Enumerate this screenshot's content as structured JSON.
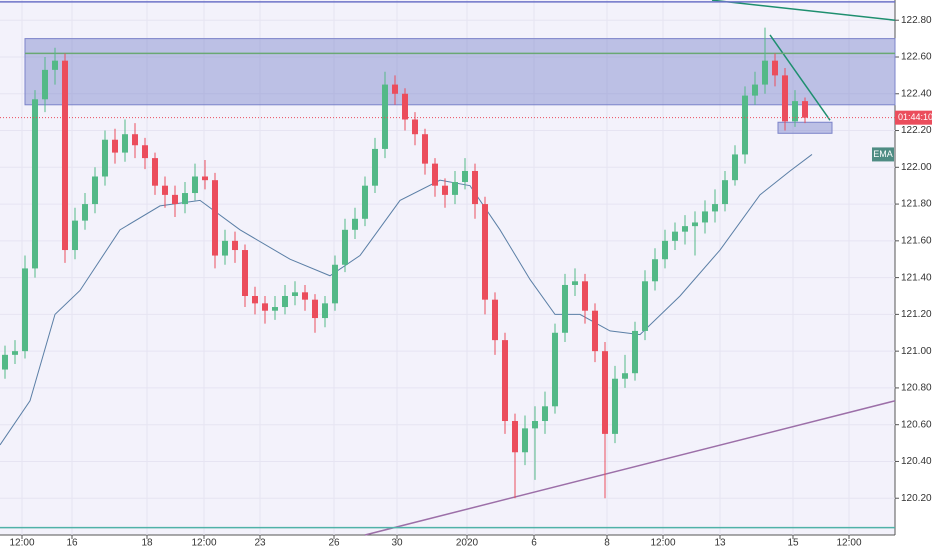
{
  "chart_data": {
    "type": "candlestick",
    "countdown": "01:44:10",
    "xlim": [
      -0.5,
      89
    ],
    "ylim": [
      120.0,
      122.91
    ],
    "grid": true,
    "up_color": "#53b987",
    "down_color": "#eb4d5c",
    "xticks": [
      {
        "value": 1.7,
        "label": "12:00"
      },
      {
        "value": 6.7,
        "label": "16"
      },
      {
        "value": 14.2,
        "label": "18"
      },
      {
        "value": 19.9,
        "label": "12:00"
      },
      {
        "value": 25.5,
        "label": "23"
      },
      {
        "value": 32.9,
        "label": "26"
      },
      {
        "value": 39.2,
        "label": "30"
      },
      {
        "value": 46.2,
        "label": "2020"
      },
      {
        "value": 52.9,
        "label": "6"
      },
      {
        "value": 60.2,
        "label": "8"
      },
      {
        "value": 65.8,
        "label": "12:00"
      },
      {
        "value": 71.5,
        "label": "13"
      },
      {
        "value": 78.8,
        "label": "15"
      },
      {
        "value": 84.4,
        "label": "12:00"
      }
    ],
    "yticks": [
      {
        "value": 120.2,
        "label": "120.200"
      },
      {
        "value": 120.4,
        "label": "120.400"
      },
      {
        "value": 120.6,
        "label": "120.600"
      },
      {
        "value": 120.8,
        "label": "120.800"
      },
      {
        "value": 121.0,
        "label": "121.000"
      },
      {
        "value": 121.2,
        "label": "121.200"
      },
      {
        "value": 121.4,
        "label": "121.400"
      },
      {
        "value": 121.6,
        "label": "121.600"
      },
      {
        "value": 121.8,
        "label": "121.800"
      },
      {
        "value": 122.0,
        "label": "122.000"
      },
      {
        "value": 122.2,
        "label": "122.200"
      },
      {
        "value": 122.4,
        "label": "122.400"
      },
      {
        "value": 122.6,
        "label": "122.600"
      },
      {
        "value": 122.8,
        "label": "122.800"
      }
    ],
    "open": [
      120.9,
      120.98,
      121.0,
      121.45,
      122.37,
      122.53,
      122.58,
      121.55,
      121.71,
      121.8,
      121.95,
      122.15,
      122.08,
      122.18,
      122.12,
      122.05,
      121.9,
      121.85,
      121.8,
      121.86,
      121.95,
      121.93,
      121.52,
      121.6,
      121.55,
      121.3,
      121.26,
      121.22,
      121.24,
      121.3,
      121.32,
      121.28,
      121.18,
      121.26,
      121.47,
      121.66,
      121.72,
      121.9,
      122.1,
      122.45,
      122.4,
      122.26,
      122.18,
      122.02,
      121.9,
      121.85,
      121.92,
      121.98,
      121.8,
      121.28,
      121.06,
      120.62,
      120.45,
      120.58,
      120.62,
      120.7,
      121.1,
      121.36,
      121.38,
      121.22,
      121.0,
      120.55,
      120.85,
      120.88,
      121.11,
      121.38,
      121.5,
      121.6,
      121.65,
      121.68,
      121.7,
      121.76,
      121.8,
      121.93,
      122.07,
      122.39,
      122.45,
      122.58,
      122.5,
      122.25,
      122.36
    ],
    "high": [
      121.03,
      121.06,
      121.52,
      122.42,
      122.6,
      122.65,
      122.62,
      121.78,
      121.86,
      122.0,
      122.2,
      122.21,
      122.26,
      122.24,
      122.16,
      122.08,
      121.95,
      121.9,
      121.92,
      122.02,
      122.04,
      121.97,
      121.66,
      121.65,
      121.58,
      121.35,
      121.3,
      121.3,
      121.36,
      121.38,
      121.36,
      121.31,
      121.3,
      121.52,
      121.72,
      121.78,
      121.95,
      122.16,
      122.52,
      122.5,
      122.43,
      122.3,
      122.21,
      122.05,
      121.94,
      121.98,
      122.05,
      122.02,
      121.84,
      121.32,
      121.1,
      120.66,
      120.65,
      120.7,
      120.78,
      121.15,
      121.42,
      121.45,
      121.42,
      121.26,
      121.05,
      120.92,
      120.98,
      121.16,
      121.44,
      121.56,
      121.66,
      121.7,
      121.74,
      121.76,
      121.82,
      121.88,
      121.98,
      122.12,
      122.44,
      122.52,
      122.76,
      122.62,
      122.54,
      122.42,
      122.38
    ],
    "low": [
      120.85,
      120.93,
      120.96,
      121.4,
      122.3,
      122.45,
      121.48,
      121.5,
      121.66,
      121.75,
      121.9,
      122.02,
      122.03,
      122.05,
      121.99,
      121.85,
      121.78,
      121.73,
      121.75,
      121.82,
      121.88,
      121.45,
      121.47,
      121.48,
      121.24,
      121.2,
      121.15,
      121.17,
      121.2,
      121.25,
      121.22,
      121.1,
      121.13,
      121.22,
      121.43,
      121.61,
      121.68,
      121.86,
      122.05,
      122.34,
      122.2,
      122.12,
      121.96,
      121.84,
      121.78,
      121.8,
      121.88,
      121.72,
      121.2,
      120.98,
      120.55,
      120.2,
      120.38,
      120.3,
      120.55,
      120.66,
      121.05,
      121.3,
      121.15,
      120.94,
      120.2,
      120.5,
      120.8,
      120.84,
      121.06,
      121.33,
      121.45,
      121.55,
      121.58,
      121.52,
      121.64,
      121.7,
      121.76,
      121.9,
      122.02,
      122.34,
      122.4,
      122.44,
      122.2,
      122.22,
      122.24
    ],
    "close": [
      120.98,
      121.0,
      121.45,
      122.37,
      122.53,
      122.58,
      121.55,
      121.71,
      121.8,
      121.95,
      122.15,
      122.08,
      122.18,
      122.12,
      122.05,
      121.9,
      121.85,
      121.8,
      121.86,
      121.95,
      121.93,
      121.52,
      121.6,
      121.55,
      121.3,
      121.26,
      121.22,
      121.24,
      121.3,
      121.32,
      121.28,
      121.18,
      121.26,
      121.47,
      121.66,
      121.72,
      121.9,
      122.1,
      122.45,
      122.4,
      122.26,
      122.18,
      122.02,
      121.9,
      121.85,
      121.92,
      121.98,
      121.8,
      121.28,
      121.06,
      120.62,
      120.45,
      120.58,
      120.62,
      120.7,
      121.1,
      121.36,
      121.38,
      121.22,
      121.0,
      120.55,
      120.85,
      120.88,
      121.11,
      121.38,
      121.5,
      121.6,
      121.65,
      121.68,
      121.7,
      121.76,
      121.8,
      121.93,
      122.07,
      122.39,
      122.45,
      122.58,
      122.5,
      122.25,
      122.36,
      122.27
    ],
    "ema": {
      "name": "EMA",
      "color": "#5b7fa6",
      "x": [
        -0.5,
        2.5,
        5,
        7.5,
        11.5,
        15.5,
        19.5,
        23.5,
        28.5,
        32.5,
        35.5,
        39.5,
        43.5,
        46.5,
        49.5,
        52.5,
        55,
        57.5,
        60.5,
        63.5,
        67.5,
        71.5,
        75.5,
        78.5,
        80.7
      ],
      "values": [
        120.49,
        120.73,
        121.2,
        121.33,
        121.66,
        121.79,
        121.82,
        121.66,
        121.5,
        121.41,
        121.52,
        121.82,
        121.93,
        121.9,
        121.66,
        121.39,
        121.2,
        121.2,
        121.11,
        121.09,
        121.3,
        121.55,
        121.85,
        121.98,
        122.07
      ]
    },
    "zones": [
      {
        "x": [
          2.0,
          89
        ],
        "y": [
          122.34,
          122.7
        ],
        "color": "#7b83c9"
      },
      {
        "x": [
          77.3,
          82.7
        ],
        "y": [
          122.185,
          122.245
        ],
        "color": "#7b83c9"
      }
    ],
    "lines": [
      {
        "x": [
          70.7,
          89
        ],
        "y": [
          122.909,
          122.8
        ],
        "color": "#1e8f6f"
      },
      {
        "x": [
          76.5,
          82.5
        ],
        "y": [
          122.72,
          122.256
        ],
        "color": "#1e8f6f"
      },
      {
        "x": [
          36,
          89
        ],
        "y": [
          120.0,
          120.73
        ],
        "color": "#9c6fa8"
      },
      {
        "x": [
          2,
          89
        ],
        "y": [
          122.62,
          122.62
        ],
        "color": "#6aa874"
      },
      {
        "x": [
          -0.5,
          89
        ],
        "y": [
          120.04,
          120.04
        ],
        "color": "#4fb2a8"
      },
      {
        "x": [
          -0.5,
          89
        ],
        "y": [
          122.9,
          122.9
        ],
        "color": "#6d73c8"
      }
    ]
  }
}
